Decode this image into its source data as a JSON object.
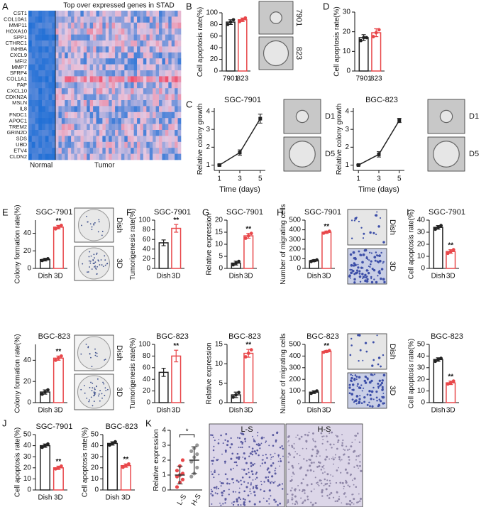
{
  "chart_data": [
    {
      "panel": "A",
      "type": "heatmap",
      "title": "Top over expressed genes in STAD",
      "rows": [
        "CST1",
        "COL10A1",
        "MMP11",
        "HOXA10",
        "SPP1",
        "CTHRC1",
        "INHBA",
        "CXCL9",
        "MFI2",
        "MMP7",
        "SFRP4",
        "COL1A1",
        "FAP",
        "CXCL10",
        "CDKN2A",
        "MSLN",
        "IL8",
        "FNDC1",
        "APOC1",
        "TREM2",
        "GRIN2D",
        "SDS",
        "UBD",
        "ETV4",
        "CLDN2"
      ],
      "groups": [
        "Normal",
        "Tumor"
      ]
    },
    {
      "panel": "B",
      "type": "bar",
      "ylabel": "Cell apoptosis rate(%)",
      "categories": [
        "7901",
        "823"
      ],
      "values": [
        84,
        88
      ],
      "errors": [
        4,
        3
      ],
      "points": [
        [
          80,
          84,
          88
        ],
        [
          85,
          88,
          91
        ]
      ],
      "colors": [
        "#222222",
        "#e8474a"
      ],
      "ylim": [
        0,
        100
      ],
      "yticks": [
        0,
        20,
        40,
        60,
        80,
        100
      ],
      "image_labels": [
        "7901",
        "823"
      ]
    },
    {
      "panel": "D",
      "type": "bar",
      "ylabel": "Cell apoptosis rate(%)",
      "categories": [
        "7901",
        "823"
      ],
      "values": [
        17,
        19.5
      ],
      "errors": [
        1.5,
        2
      ],
      "points": [
        [
          15.5,
          17,
          17
        ],
        [
          17.5,
          19.5,
          21
        ]
      ],
      "colors": [
        "#222222",
        "#e8474a"
      ],
      "ylim": [
        0,
        30
      ],
      "yticks": [
        0,
        10,
        20,
        30
      ]
    },
    {
      "panel": "C",
      "type": "line",
      "title": "SGC-7901",
      "xlabel": "Time (days)",
      "ylabel": "Relative colony growth",
      "x": [
        1,
        3,
        5
      ],
      "values": [
        1,
        1.7,
        3.6
      ],
      "errors": [
        0.05,
        0.15,
        0.25
      ],
      "color": "#222222",
      "xlim": [
        0.5,
        5.5
      ],
      "xticks": [
        1,
        3,
        5
      ],
      "ylim": [
        0.7,
        4.2
      ],
      "yticks": [
        1,
        2,
        3,
        4
      ],
      "image_labels": [
        "D1",
        "D5"
      ]
    },
    {
      "type": "line",
      "title": "BGC-823",
      "xlabel": "Time (days)",
      "ylabel": "Relative colony growth",
      "x": [
        1,
        3,
        5
      ],
      "values": [
        1,
        1.6,
        3.5
      ],
      "errors": [
        0.03,
        0.15,
        0.12
      ],
      "color": "#222222",
      "xlim": [
        0.5,
        5.5
      ],
      "xticks": [
        1,
        3,
        5
      ],
      "ylim": [
        0.7,
        4.2
      ],
      "yticks": [
        1,
        2,
        3,
        4
      ],
      "image_labels": [
        "D1",
        "D5"
      ]
    },
    {
      "panel": "E",
      "type": "bar",
      "title": "SGC-7901",
      "ylabel": "Colony formation rate(%)",
      "categories": [
        "Dish",
        "3D"
      ],
      "values": [
        10,
        47
      ],
      "errors": [
        1.5,
        2
      ],
      "points": [
        [
          9,
          10,
          11
        ],
        [
          45,
          47,
          49
        ]
      ],
      "colors": [
        "#222222",
        "#e8474a"
      ],
      "ylim": [
        0,
        55
      ],
      "yticks": [
        0,
        20,
        40
      ],
      "annotation": "**",
      "image_labels": [
        "Dish",
        "3D"
      ]
    },
    {
      "type": "bar",
      "title": "BGC-823",
      "ylabel": "Colony formation rate(%)",
      "categories": [
        "Dish",
        "3D"
      ],
      "values": [
        10,
        42
      ],
      "errors": [
        2,
        2
      ],
      "points": [
        [
          8,
          10,
          12
        ],
        [
          40,
          42,
          44
        ]
      ],
      "colors": [
        "#222222",
        "#e8474a"
      ],
      "ylim": [
        0,
        55
      ],
      "yticks": [
        0,
        20,
        40
      ],
      "annotation": "**",
      "image_labels": [
        "Dish",
        "3D"
      ]
    },
    {
      "panel": "F",
      "type": "bar",
      "title": "SGC-7901",
      "ylabel": "Tumorigenesis rate(%)",
      "categories": [
        "Dish",
        "3D"
      ],
      "values": [
        53,
        83
      ],
      "errors": [
        6,
        8
      ],
      "colors": [
        "#222222",
        "#e8474a"
      ],
      "ylim": [
        0,
        100
      ],
      "yticks": [
        0,
        20,
        40,
        60,
        80,
        100
      ],
      "annotation": "**"
    },
    {
      "type": "bar",
      "title": "BGC-823",
      "ylabel": "Tumorigenesis rate(%)",
      "categories": [
        "Dish",
        "3D"
      ],
      "values": [
        52,
        80
      ],
      "errors": [
        7,
        10
      ],
      "colors": [
        "#222222",
        "#e8474a"
      ],
      "ylim": [
        0,
        100
      ],
      "yticks": [
        0,
        20,
        40,
        60,
        80,
        100
      ],
      "annotation": "**"
    },
    {
      "panel": "G",
      "type": "bar",
      "title": "SGC-7901",
      "ylabel": "Relative expression",
      "categories": [
        "Dish",
        "3D"
      ],
      "values": [
        2.2,
        13.5
      ],
      "errors": [
        0.8,
        1
      ],
      "points": [
        [
          1.5,
          2.2,
          2.9
        ],
        [
          12.5,
          13.5,
          14.5
        ]
      ],
      "colors": [
        "#222222",
        "#e8474a"
      ],
      "ylim": [
        0,
        20
      ],
      "yticks": [
        0,
        5,
        10,
        15,
        20
      ],
      "annotation": "**"
    },
    {
      "type": "bar",
      "title": "BGC-823",
      "ylabel": "Relative expression",
      "categories": [
        "Dish",
        "3D"
      ],
      "values": [
        2,
        12.7
      ],
      "errors": [
        0.7,
        1
      ],
      "points": [
        [
          1.4,
          2,
          2.6
        ],
        [
          11.8,
          12.7,
          13.6
        ]
      ],
      "colors": [
        "#222222",
        "#e8474a"
      ],
      "ylim": [
        0,
        15
      ],
      "yticks": [
        0,
        5,
        10,
        15
      ],
      "annotation": "**"
    },
    {
      "panel": "H",
      "type": "bar",
      "title": "SGC-7901",
      "ylabel": "Number of migrating cells",
      "categories": [
        "Dish",
        "3D"
      ],
      "values": [
        80,
        375
      ],
      "errors": [
        10,
        12
      ],
      "points": [
        [
          72,
          80,
          88
        ],
        [
          365,
          375,
          385
        ]
      ],
      "colors": [
        "#222222",
        "#e8474a"
      ],
      "ylim": [
        0,
        500
      ],
      "yticks": [
        0,
        100,
        200,
        300,
        400,
        500
      ],
      "annotation": "**",
      "image_labels": [
        "Dish",
        "3D"
      ]
    },
    {
      "type": "bar",
      "title": "BGC-823",
      "ylabel": "Number of migrating cells",
      "categories": [
        "Dish",
        "3D"
      ],
      "values": [
        90,
        440
      ],
      "errors": [
        12,
        8
      ],
      "points": [
        [
          80,
          90,
          100
        ],
        [
          433,
          440,
          447
        ]
      ],
      "colors": [
        "#222222",
        "#e8474a"
      ],
      "ylim": [
        0,
        500
      ],
      "yticks": [
        0,
        100,
        200,
        300,
        400,
        500
      ],
      "annotation": "**",
      "image_labels": [
        "Dish",
        "3D"
      ]
    },
    {
      "panel": "I",
      "type": "bar",
      "title": "SGC-7901",
      "ylabel": "Cell apoptosis rate(%)",
      "categories": [
        "Dish",
        "3D"
      ],
      "values": [
        34,
        14
      ],
      "errors": [
        1.5,
        1.5
      ],
      "points": [
        [
          32.5,
          34,
          35.5
        ],
        [
          12.5,
          14,
          15.5
        ]
      ],
      "colors": [
        "#222222",
        "#e8474a"
      ],
      "ylim": [
        0,
        40
      ],
      "yticks": [
        0,
        10,
        20,
        30,
        40
      ],
      "annotation": "**"
    },
    {
      "type": "bar",
      "title": "BGC-823",
      "ylabel": "Cell apoptosis rate(%)",
      "categories": [
        "Dish",
        "3D"
      ],
      "values": [
        37,
        17
      ],
      "errors": [
        1.5,
        1.5
      ],
      "points": [
        [
          35.5,
          37,
          38
        ],
        [
          16,
          17,
          18.5
        ]
      ],
      "colors": [
        "#222222",
        "#e8474a"
      ],
      "ylim": [
        0,
        50
      ],
      "yticks": [
        0,
        10,
        20,
        30,
        40,
        50
      ],
      "annotation": "**"
    },
    {
      "panel": "J",
      "type": "bar",
      "title": "SGC-7901",
      "ylabel": "Cell apoptosis rate(%)",
      "categories": [
        "Dish",
        "3D"
      ],
      "values": [
        40,
        20
      ],
      "errors": [
        1.5,
        1.5
      ],
      "points": [
        [
          38.5,
          40,
          41.5
        ],
        [
          19,
          20,
          21.5
        ]
      ],
      "colors": [
        "#222222",
        "#e8474a"
      ],
      "ylim": [
        0,
        50
      ],
      "yticks": [
        0,
        10,
        20,
        30,
        40,
        50
      ],
      "annotation": "**"
    },
    {
      "type": "bar",
      "title": "BGC-823",
      "ylabel": "Cell apoptosis rate(%)",
      "categories": [
        "Dish",
        "3D"
      ],
      "values": [
        42,
        22
      ],
      "errors": [
        1.5,
        1.5
      ],
      "points": [
        [
          40.5,
          42,
          43.5
        ],
        [
          20.5,
          22,
          23.5
        ]
      ],
      "colors": [
        "#222222",
        "#e8474a"
      ],
      "ylim": [
        0,
        50
      ],
      "yticks": [
        0,
        10,
        20,
        30,
        40,
        50
      ],
      "annotation": "**"
    },
    {
      "panel": "K",
      "type": "strip",
      "ylabel": "Relative expression",
      "categories": [
        "L-S",
        "H-S"
      ],
      "points": [
        [
          0.2,
          0.5,
          0.7,
          0.9,
          1.0,
          1.1,
          1.3,
          1.6,
          2.0
        ],
        [
          0.9,
          1.1,
          1.5,
          1.9,
          2.2,
          2.4,
          2.6,
          2.8,
          3.0
        ]
      ],
      "means": [
        1.0,
        2.0
      ],
      "sd": [
        0.6,
        0.9
      ],
      "colors": [
        "#e8474a",
        "#999999"
      ],
      "ylim": [
        0,
        4
      ],
      "yticks": [
        0,
        1,
        2,
        3,
        4
      ],
      "annotation": "*",
      "image_labels": [
        "L-S",
        "H-S"
      ]
    }
  ]
}
